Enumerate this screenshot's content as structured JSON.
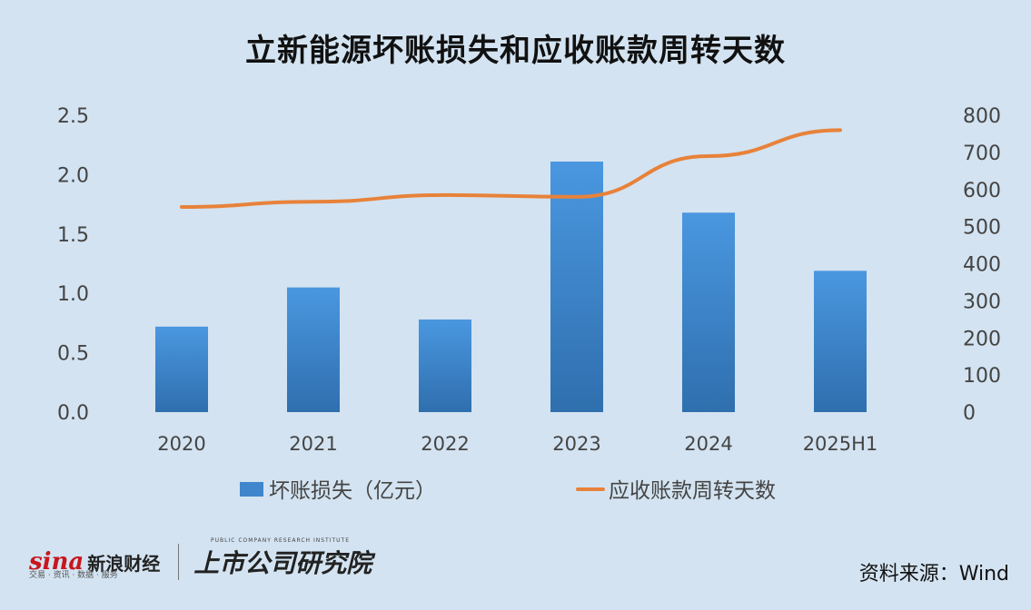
{
  "chart_data": {
    "type": "bar",
    "title": "立新能源坏账损失和应收账款周转天数",
    "categories": [
      "2020",
      "2021",
      "2022",
      "2023",
      "2024",
      "2025H1"
    ],
    "series": [
      {
        "name": "坏账损失（亿元）",
        "type": "bar",
        "axis": "left",
        "color": "#3f86cc",
        "values": [
          0.72,
          1.05,
          0.78,
          2.11,
          1.68,
          1.19
        ]
      },
      {
        "name": "应收账款周转天数",
        "type": "line",
        "axis": "right",
        "color": "#e8823a",
        "values": [
          553,
          567,
          585,
          580,
          690,
          760
        ]
      }
    ],
    "y_left": {
      "min": 0,
      "max": 2.5,
      "ticks": [
        "0.0",
        "0.5",
        "1.0",
        "1.5",
        "2.0",
        "2.5"
      ]
    },
    "y_right": {
      "min": 0,
      "max": 800,
      "ticks": [
        "0",
        "100",
        "200",
        "300",
        "400",
        "500",
        "600",
        "700",
        "800"
      ]
    },
    "grid": false,
    "legend": "bottom"
  },
  "footer": {
    "sina_mark": "sina",
    "sina_name": "新浪财经",
    "sina_tagline": "交易 · 资讯 · 数据 · 服务",
    "institute_name": "上市公司研究院",
    "institute_en": "PUBLIC COMPANY RESEARCH INSTITUTE",
    "source": "资料来源：Wind"
  }
}
